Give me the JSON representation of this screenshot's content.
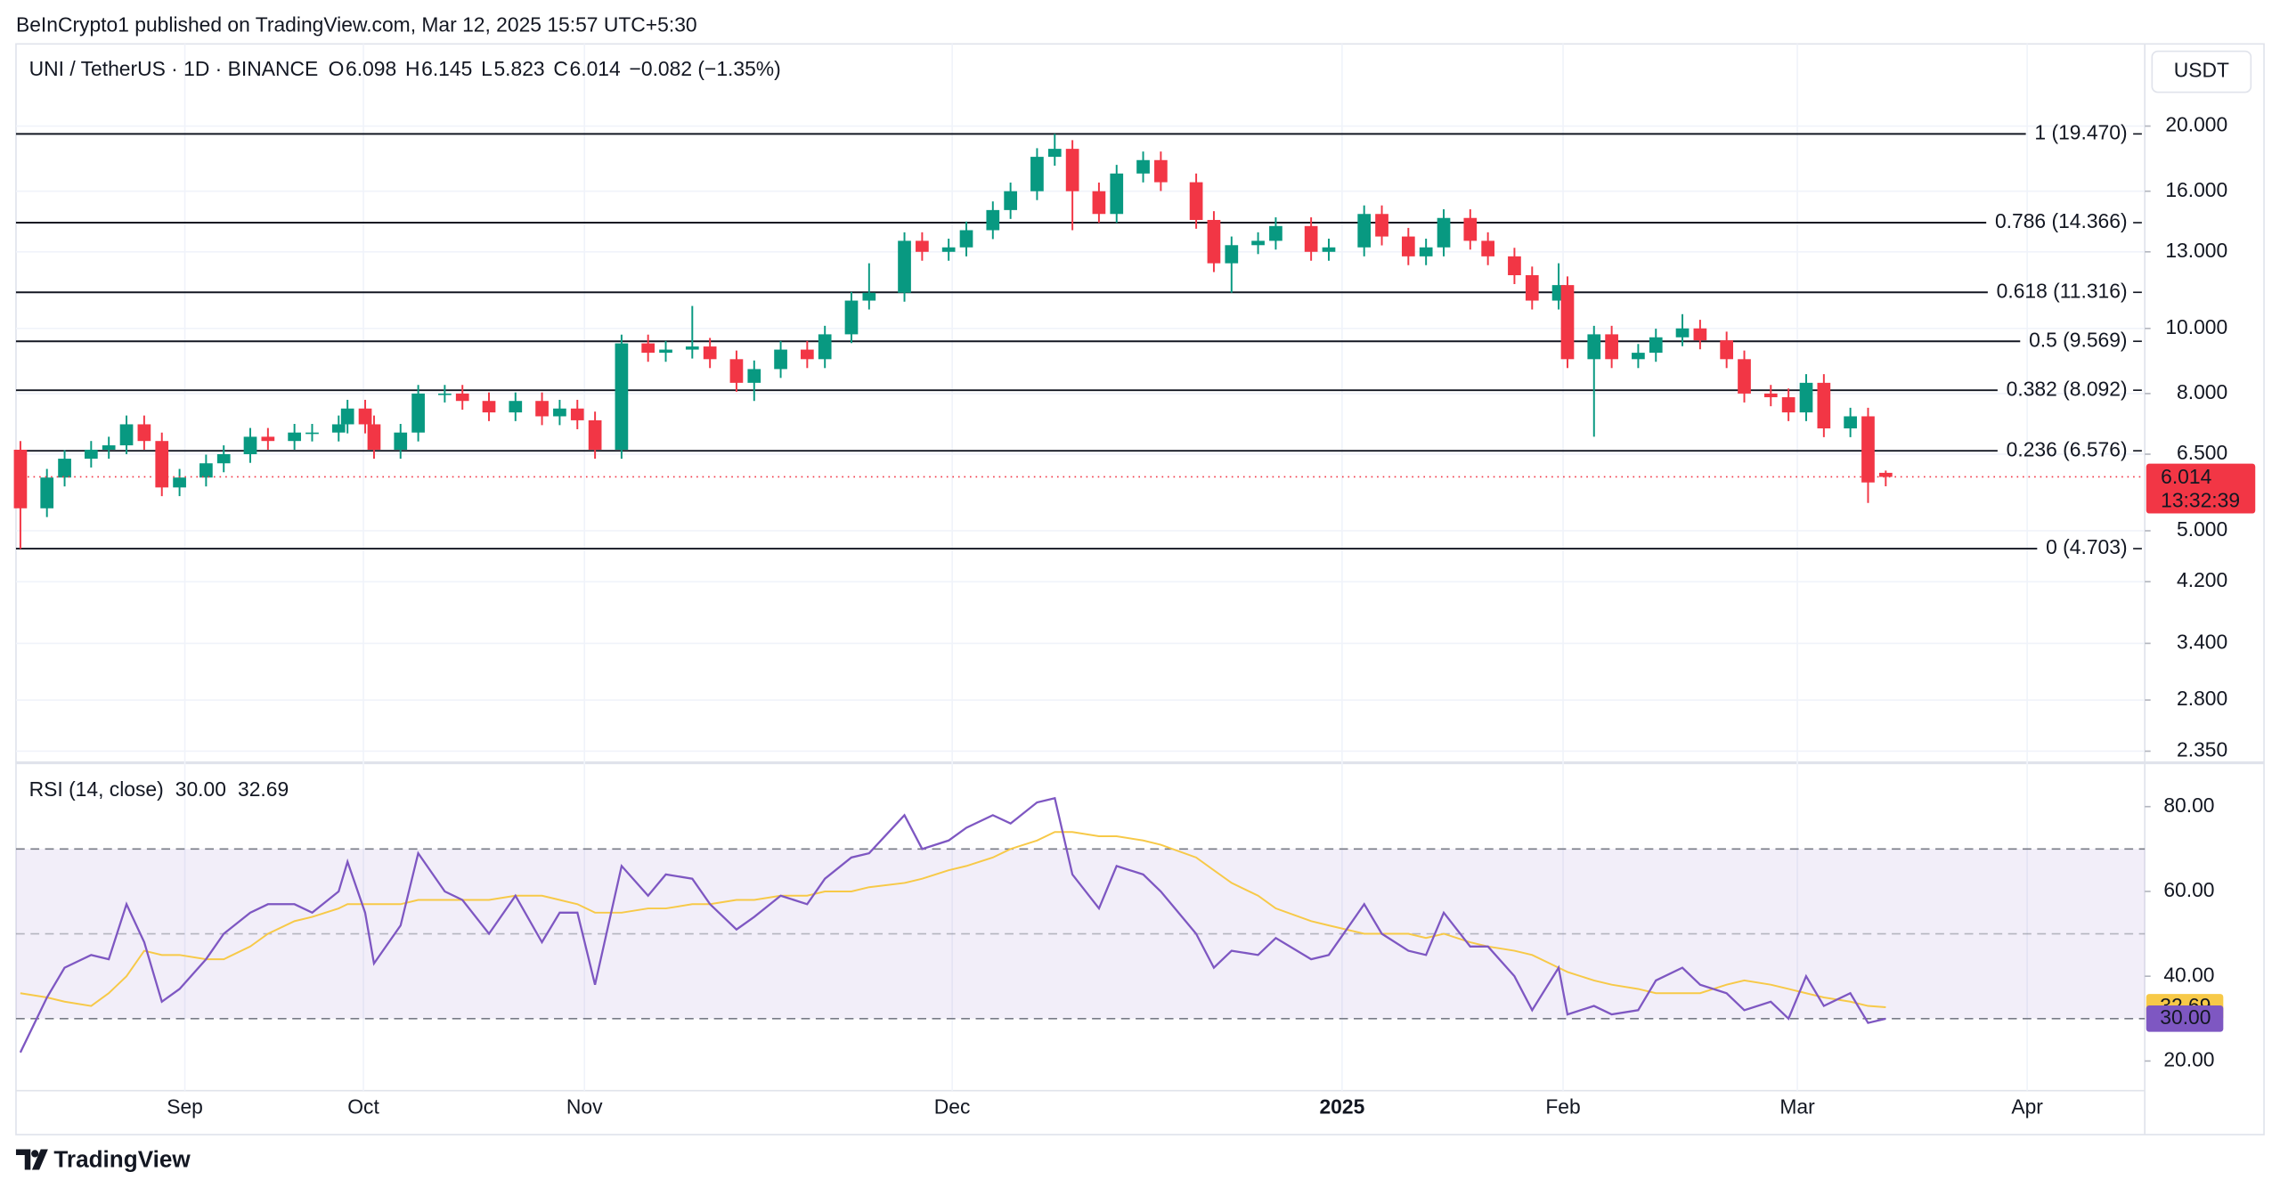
{
  "header": {
    "published": "BeInCrypto1 published on TradingView.com, Mar 12, 2025 15:57 UTC+5:30"
  },
  "chart_data": [
    {
      "type": "candlestick",
      "title": "UNI / TetherUS · 1D · BINANCE",
      "ohlc": [
        {
          "label": "O",
          "value": 6.098
        },
        {
          "label": "H",
          "value": 6.145
        },
        {
          "label": "L",
          "value": 5.823
        },
        {
          "label": "C",
          "value": 6.014
        }
      ],
      "change": "−0.082 (−1.35%)",
      "currency": "USDT",
      "countdown": "13:32:39",
      "up_color": "#089981",
      "down_color": "#f23645",
      "log_scale": true,
      "grid": true,
      "xlim": [
        -0.5,
        240.3
      ],
      "ylim": [
        2.27,
        26.5
      ],
      "yticks": [
        {
          "value": 20,
          "label": "20.000"
        },
        {
          "value": 16,
          "label": "16.000"
        },
        {
          "value": 13,
          "label": "13.000"
        },
        {
          "value": 10,
          "label": "10.000"
        },
        {
          "value": 8,
          "label": "8.000"
        },
        {
          "value": 6.5,
          "label": "6.500"
        },
        {
          "value": 5,
          "label": "5.000"
        },
        {
          "value": 4.2,
          "label": "4.200"
        },
        {
          "value": 3.4,
          "label": "3.400"
        },
        {
          "value": 2.8,
          "label": "2.800"
        },
        {
          "value": 2.35,
          "label": "2.350"
        }
      ],
      "fib_levels": [
        {
          "value": 19.47,
          "label": "1 (19.470)"
        },
        {
          "value": 14.366,
          "label": "0.786 (14.366)"
        },
        {
          "value": 11.316,
          "label": "0.618 (11.316)"
        },
        {
          "value": 9.569,
          "label": "0.5 (9.569)"
        },
        {
          "value": 8.092,
          "label": "0.382 (8.092)"
        },
        {
          "value": 6.576,
          "label": "0.236 (6.576)"
        },
        {
          "value": 4.703,
          "label": "0 (4.703)"
        }
      ],
      "x": [
        0,
        3,
        5,
        8,
        10,
        12,
        14,
        16,
        18,
        21,
        23,
        26,
        28,
        31,
        33,
        36,
        37,
        39,
        40,
        43,
        45,
        48,
        50,
        53,
        56,
        59,
        61,
        63,
        65,
        68,
        71,
        73,
        76,
        78,
        81,
        83,
        86,
        89,
        91,
        94,
        96,
        100,
        102,
        105,
        107,
        110,
        112,
        115,
        117,
        119,
        122,
        124,
        127,
        129,
        133,
        135,
        137,
        140,
        142,
        146,
        148,
        152,
        154,
        157,
        159,
        161,
        164,
        166,
        169,
        171,
        174,
        175,
        178,
        180,
        183,
        185,
        188,
        190,
        193,
        195,
        198,
        200,
        202,
        204,
        207,
        209,
        211
      ],
      "open": [
        6.6,
        5.4,
        6.0,
        6.4,
        6.6,
        6.7,
        7.2,
        6.8,
        5.8,
        6.0,
        6.3,
        6.5,
        6.9,
        6.8,
        7.0,
        7.0,
        7.2,
        7.6,
        7.2,
        6.6,
        7.0,
        8.0,
        8.0,
        7.8,
        7.5,
        7.8,
        7.4,
        7.6,
        7.3,
        6.6,
        9.5,
        9.2,
        9.3,
        9.4,
        9.0,
        8.3,
        8.7,
        9.3,
        9.0,
        9.8,
        11.0,
        11.3,
        13.5,
        13.0,
        13.2,
        14.0,
        15.0,
        16.0,
        18.0,
        18.5,
        16.0,
        14.8,
        17.0,
        17.8,
        16.5,
        14.5,
        12.5,
        13.3,
        13.5,
        14.2,
        13.0,
        13.2,
        14.8,
        13.7,
        12.8,
        13.2,
        14.6,
        13.5,
        12.8,
        12.0,
        11.0,
        11.6,
        9.0,
        9.8,
        9.0,
        9.2,
        9.7,
        10.0,
        9.6,
        9.0,
        8.0,
        7.9,
        7.5,
        8.3,
        7.1,
        7.4,
        6.098
      ],
      "high": [
        6.8,
        6.18,
        6.59,
        6.8,
        6.9,
        7.42,
        7.42,
        7.0,
        6.18,
        6.49,
        6.7,
        7.11,
        7.11,
        7.21,
        7.21,
        7.42,
        7.83,
        7.83,
        7.42,
        7.21,
        8.24,
        8.24,
        8.24,
        8.03,
        8.03,
        8.03,
        7.83,
        7.83,
        7.52,
        9.79,
        9.79,
        9.58,
        10.8,
        9.68,
        9.27,
        8.96,
        9.58,
        9.58,
        10.09,
        11.33,
        12.5,
        13.9,
        13.9,
        13.6,
        14.42,
        15.45,
        16.48,
        18.54,
        19.47,
        19.06,
        16.48,
        17.51,
        18.33,
        18.33,
        17.0,
        14.94,
        13.7,
        13.9,
        14.63,
        14.63,
        13.6,
        15.24,
        15.24,
        14.11,
        13.6,
        15.04,
        15.04,
        13.9,
        13.18,
        12.36,
        12.5,
        11.95,
        10.09,
        10.09,
        9.48,
        9.99,
        10.5,
        10.3,
        9.89,
        9.27,
        8.24,
        8.14,
        8.55,
        8.55,
        7.62,
        7.62,
        6.145
      ],
      "low": [
        4.7,
        5.24,
        5.82,
        6.21,
        6.4,
        6.5,
        6.6,
        5.63,
        5.63,
        5.82,
        6.11,
        6.31,
        6.6,
        6.6,
        6.79,
        6.79,
        6.98,
        6.98,
        6.4,
        6.4,
        6.79,
        7.76,
        7.57,
        7.28,
        7.28,
        7.18,
        7.18,
        7.08,
        6.4,
        6.4,
        8.92,
        8.92,
        9.02,
        8.73,
        8.05,
        7.8,
        8.44,
        8.73,
        8.73,
        9.51,
        10.67,
        10.96,
        12.61,
        12.61,
        12.8,
        13.58,
        14.55,
        15.52,
        17.46,
        14.0,
        14.36,
        14.36,
        16.49,
        16.01,
        14.07,
        12.13,
        11.3,
        12.9,
        13.1,
        12.61,
        12.61,
        12.8,
        13.29,
        12.42,
        12.42,
        12.8,
        13.1,
        12.42,
        11.64,
        10.67,
        10.67,
        8.73,
        6.9,
        8.73,
        8.73,
        8.92,
        9.41,
        9.31,
        8.73,
        7.76,
        7.66,
        7.28,
        7.28,
        6.89,
        6.89,
        5.5,
        5.823
      ],
      "close": [
        5.4,
        6.0,
        6.4,
        6.6,
        6.7,
        7.2,
        6.8,
        5.8,
        6.0,
        6.3,
        6.5,
        6.9,
        6.8,
        7.0,
        7.0,
        7.2,
        7.6,
        7.2,
        6.6,
        7.0,
        8.0,
        8.0,
        7.8,
        7.5,
        7.8,
        7.4,
        7.6,
        7.3,
        6.6,
        9.5,
        9.2,
        9.3,
        9.4,
        9.0,
        8.3,
        8.7,
        9.3,
        9.0,
        9.8,
        11.0,
        11.3,
        13.5,
        13.0,
        13.2,
        14.0,
        15.0,
        16.0,
        18.0,
        18.5,
        16.0,
        14.8,
        17.0,
        17.8,
        16.5,
        14.5,
        12.5,
        13.3,
        13.5,
        14.2,
        13.0,
        13.2,
        14.8,
        13.7,
        12.8,
        13.2,
        14.6,
        13.5,
        12.8,
        12.0,
        11.0,
        11.6,
        9.0,
        9.8,
        9.0,
        9.2,
        9.7,
        10.0,
        9.6,
        9.0,
        8.0,
        7.9,
        7.5,
        8.3,
        7.1,
        7.4,
        5.9,
        6.014
      ]
    },
    {
      "type": "line",
      "title": "RSI (14, close)",
      "ylim": [
        13,
        90
      ],
      "yticks": [
        {
          "value": 80,
          "label": "80.00"
        },
        {
          "value": 60,
          "label": "60.00"
        },
        {
          "value": 40,
          "label": "40.00"
        },
        {
          "value": 20,
          "label": "20.00"
        }
      ],
      "bands": [
        70,
        50,
        30
      ],
      "band_color": "#7e57c2",
      "xticks": [
        {
          "value": 18.6,
          "label": "Sep"
        },
        {
          "value": 38.8,
          "label": "Oct"
        },
        {
          "value": 63.8,
          "label": "Nov"
        },
        {
          "value": 105.4,
          "label": "Dec"
        },
        {
          "value": 149.5,
          "label": "2025"
        },
        {
          "value": 174.5,
          "label": "Feb"
        },
        {
          "value": 201,
          "label": "Mar"
        },
        {
          "value": 227,
          "label": "Apr"
        }
      ],
      "series": [
        {
          "color": "#7e57c2",
          "current": {
            "value": 30,
            "label": "30.00"
          },
          "values": [
            22,
            35,
            42,
            45,
            44,
            57,
            48,
            34,
            37,
            44,
            50,
            55,
            57,
            57,
            55,
            60,
            67,
            55,
            43,
            52,
            69,
            60,
            58,
            50,
            59,
            48,
            55,
            55,
            38,
            66,
            59,
            64,
            63,
            57,
            51,
            54,
            59,
            57,
            63,
            68,
            69,
            78,
            70,
            72,
            75,
            78,
            76,
            81,
            82,
            64,
            56,
            66,
            64,
            60,
            50,
            42,
            46,
            45,
            49,
            44,
            45,
            57,
            50,
            46,
            45,
            55,
            47,
            47,
            40,
            32,
            42,
            31,
            33,
            31,
            32,
            39,
            42,
            38,
            36,
            32,
            34,
            30,
            40,
            33,
            36,
            29,
            30
          ]
        },
        {
          "color": "#f7c948",
          "current": {
            "value": 32.69,
            "label": "32.69"
          },
          "values": [
            36,
            35,
            34,
            33,
            36,
            40,
            46,
            45,
            45,
            44,
            44,
            47,
            50,
            53,
            54,
            56,
            57,
            57,
            57,
            57,
            58,
            58,
            58,
            58,
            59,
            59,
            58,
            57,
            55,
            55,
            56,
            56,
            57,
            57,
            58,
            58,
            59,
            59,
            60,
            60,
            61,
            62,
            63,
            65,
            66,
            68,
            70,
            72,
            74,
            74,
            73,
            73,
            72,
            71,
            68,
            65,
            62,
            59,
            56,
            53,
            52,
            50,
            50,
            50,
            49,
            50,
            48,
            47,
            46,
            45,
            42,
            41,
            39,
            38,
            37,
            36,
            36,
            36,
            38,
            39,
            38,
            37,
            36,
            35,
            34,
            33,
            32.69
          ]
        }
      ]
    }
  ],
  "footer": {
    "brand": "TradingView"
  }
}
